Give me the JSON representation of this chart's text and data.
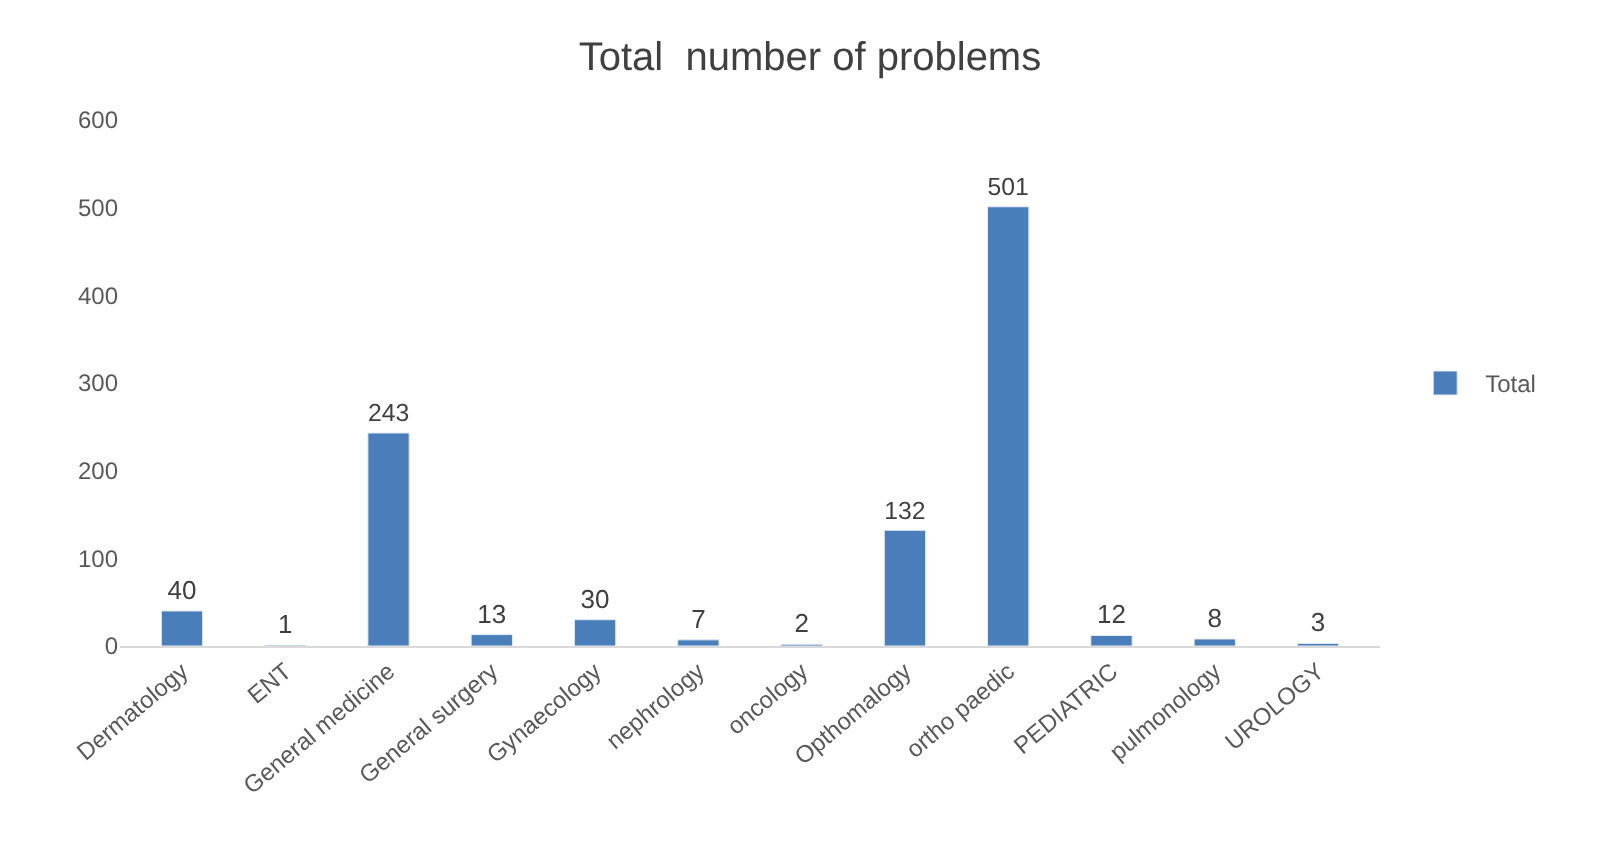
{
  "chart_data": {
    "type": "bar",
    "title": "Total  number of problems",
    "categories": [
      "Dermatology",
      "ENT",
      "General medicine",
      "General surgery",
      "Gynaecology",
      "nephrology",
      "oncology",
      "Opthomalogy",
      "ortho paedic",
      "PEDIATRIC",
      "pulmonology",
      "UROLOGY"
    ],
    "series": [
      {
        "name": "Total",
        "color": "#4a7ebb",
        "values": [
          40,
          1,
          243,
          13,
          30,
          7,
          2,
          132,
          501,
          12,
          8,
          3
        ]
      }
    ],
    "ylim": [
      0,
      600
    ],
    "yticks": [
      0,
      100,
      200,
      300,
      400,
      500,
      600
    ],
    "data_labels": true,
    "legend": "right"
  }
}
